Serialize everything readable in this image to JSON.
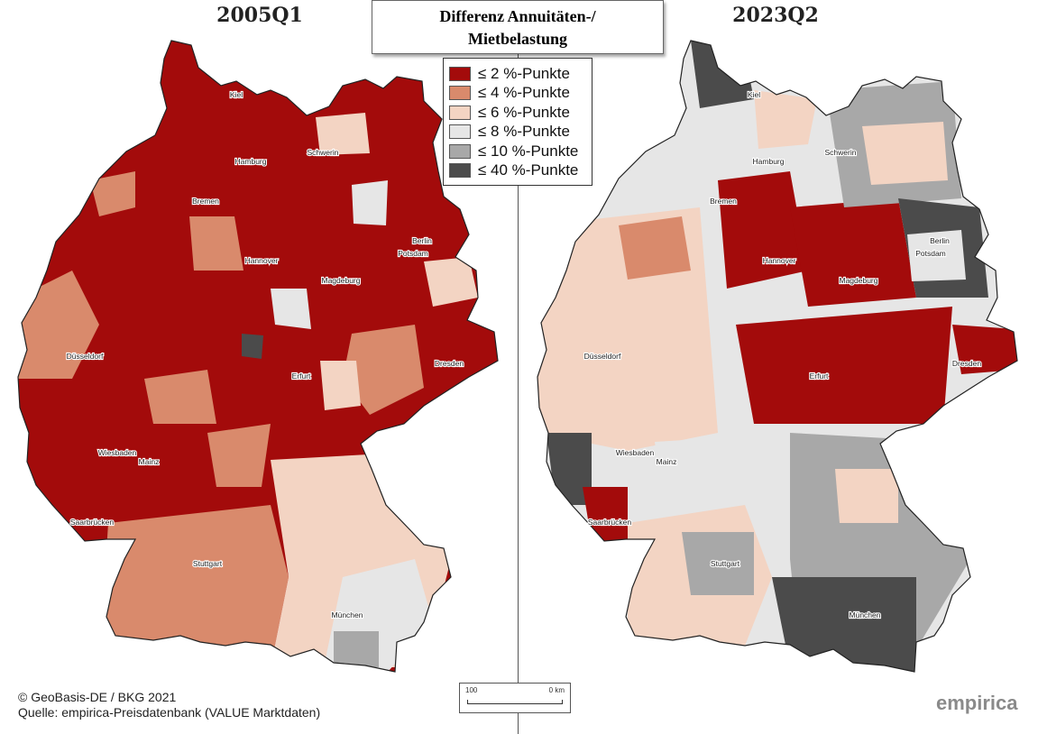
{
  "panels": [
    {
      "title": "2005Q1"
    },
    {
      "title": "2023Q2"
    }
  ],
  "map_title": {
    "line1": "Differenz Annuitäten-/",
    "line2": "Mietbelastung"
  },
  "legend": [
    {
      "label": "≤ 2 %-Punkte",
      "color": "#a30b0b"
    },
    {
      "label": "≤ 4 %-Punkte",
      "color": "#d98a6c"
    },
    {
      "label": "≤ 6 %-Punkte",
      "color": "#f3d4c3"
    },
    {
      "label": "≤ 8 %-Punkte",
      "color": "#e6e6e6"
    },
    {
      "label": "≤ 10 %-Punkte",
      "color": "#a8a8a8"
    },
    {
      "label": "≤ 40 %-Punkte",
      "color": "#4b4b4b"
    }
  ],
  "cities": [
    "Kiel",
    "Hamburg",
    "Schwerin",
    "Bremen",
    "Berlin",
    "Potsdam",
    "Hannover",
    "Magdeburg",
    "Düsseldorf",
    "Dresden",
    "Erfurt",
    "Wiesbaden",
    "Mainz",
    "Saarbrücken",
    "Stuttgart",
    "München"
  ],
  "scale_bar": {
    "left_label": "100",
    "right_label": "0 km"
  },
  "copyright": {
    "line1": "© GeoBasis-DE / BKG 2021",
    "line2": "Quelle: empirica-Preisdatenbank (VALUE Marktdaten)"
  },
  "logo": "empirica"
}
